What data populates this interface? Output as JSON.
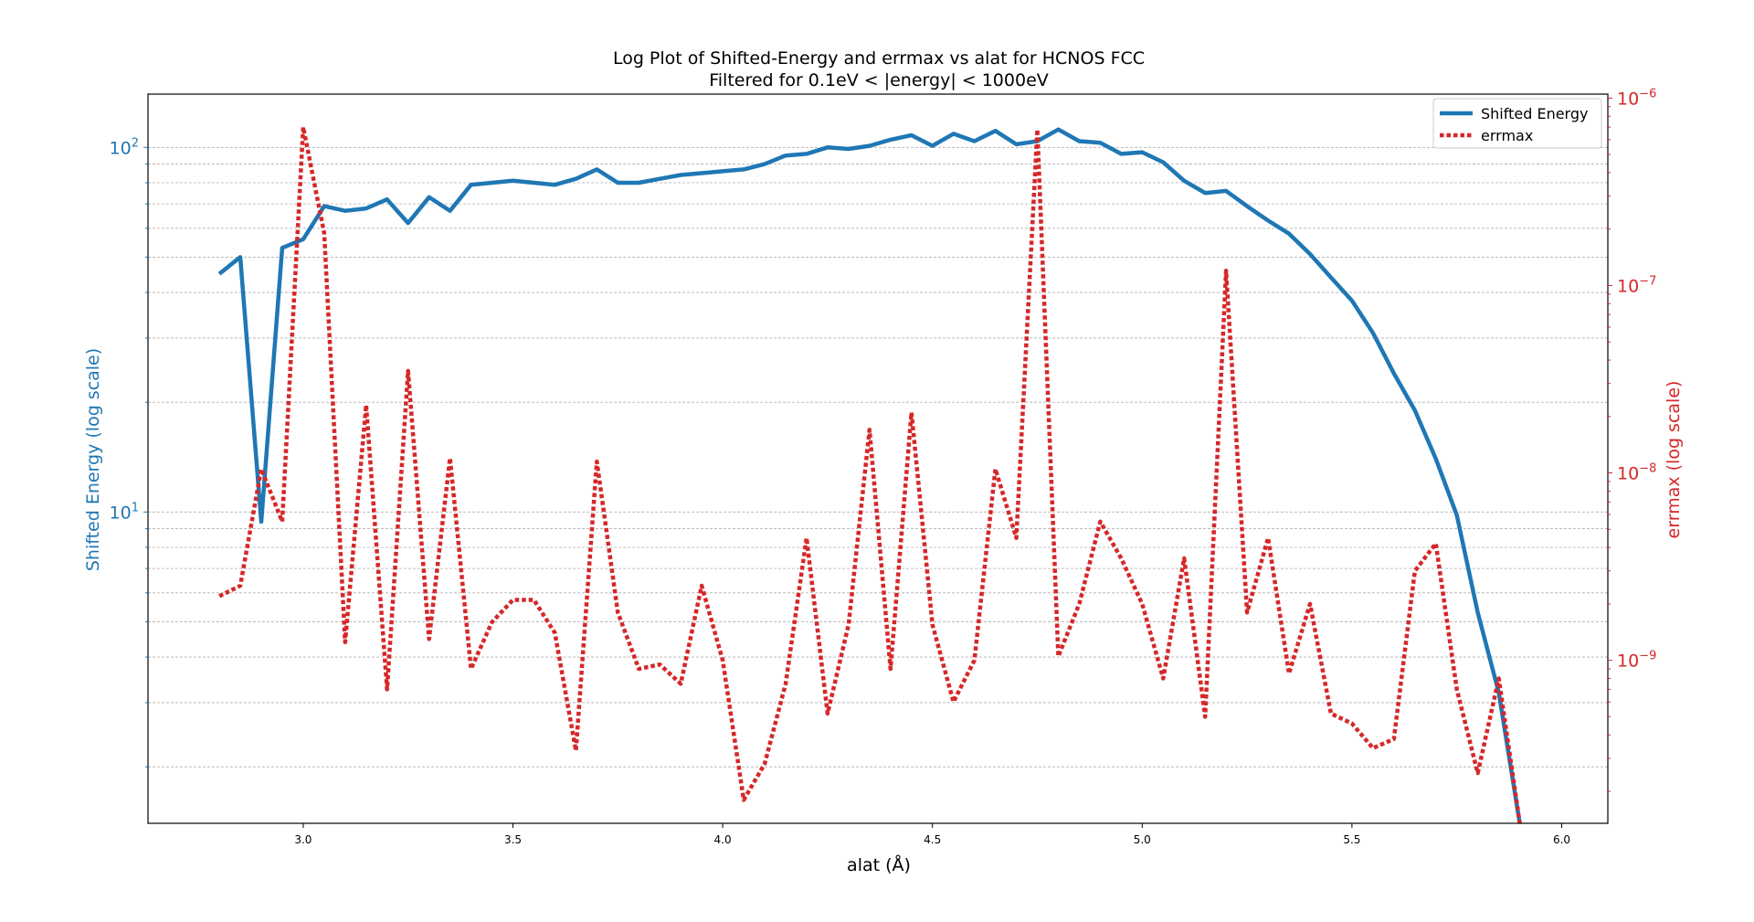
{
  "chart_data": {
    "type": "line",
    "title": "Log Plot of Shifted-Energy and errmax vs alat for HCNOS FCC",
    "subtitle": "Filtered for 0.1eV < |energy| < 1000eV",
    "xlabel": "alat (Å)",
    "ylabel_left": "Shifted Energy (log scale)",
    "ylabel_right": "errmax (log scale)",
    "xlim": [
      2.63,
      6.11
    ],
    "ylim_left": [
      1.4,
      140
    ],
    "ylim_right": [
      1.35e-10,
      1.05e-06
    ],
    "left_yscale": "log",
    "right_yscale": "log",
    "grid": "horizontal minor dashed (left axis)",
    "legend_position": "top-right",
    "x_ticks": [
      "3.0",
      "3.5",
      "4.0",
      "4.5",
      "5.0",
      "5.5",
      "6.0"
    ],
    "x_tick_values": [
      3.0,
      3.5,
      4.0,
      4.5,
      5.0,
      5.5,
      6.0
    ],
    "left_ticks": [
      {
        "value": 10,
        "base": "10",
        "exp": "1"
      },
      {
        "value": 100,
        "base": "10",
        "exp": "2"
      }
    ],
    "right_ticks": [
      {
        "value": 1e-09,
        "base": "10",
        "exp": "−9"
      },
      {
        "value": 1e-08,
        "base": "10",
        "exp": "−8"
      },
      {
        "value": 1e-07,
        "base": "10",
        "exp": "−7"
      },
      {
        "value": 1e-06,
        "base": "10",
        "exp": "−6"
      }
    ],
    "series": [
      {
        "name": "Shifted Energy",
        "axis": "left",
        "color": "#1f77b4",
        "style": "solid",
        "x": [
          2.8,
          2.85,
          2.9,
          2.95,
          3.0,
          3.05,
          3.1,
          3.15,
          3.2,
          3.25,
          3.3,
          3.35,
          3.4,
          3.45,
          3.5,
          3.55,
          3.6,
          3.65,
          3.7,
          3.75,
          3.8,
          3.85,
          3.9,
          3.95,
          4.0,
          4.05,
          4.1,
          4.15,
          4.2,
          4.25,
          4.3,
          4.35,
          4.4,
          4.45,
          4.5,
          4.55,
          4.6,
          4.65,
          4.7,
          4.75,
          4.8,
          4.85,
          4.9,
          4.95,
          5.0,
          5.05,
          5.1,
          5.15,
          5.2,
          5.25,
          5.3,
          5.35,
          5.4,
          5.45,
          5.5,
          5.55,
          5.6,
          5.65,
          5.7,
          5.75,
          5.8,
          5.85,
          5.9
        ],
        "values": [
          45,
          50,
          9.4,
          53,
          56,
          69,
          67,
          68,
          72,
          62,
          73,
          67,
          79,
          80,
          81,
          80,
          79,
          82,
          87,
          80,
          80,
          82,
          84,
          85,
          86,
          87,
          90,
          95,
          96,
          100,
          99,
          101,
          105,
          108,
          101,
          109,
          104,
          111,
          102,
          104,
          112,
          104,
          103,
          96,
          97,
          91,
          81,
          75,
          76,
          69,
          63,
          58,
          51,
          44,
          38,
          31,
          24,
          19,
          14,
          9.8,
          5.3,
          3.2,
          1.4
        ]
      },
      {
        "name": "errmax",
        "axis": "right",
        "color": "#d62728",
        "style": "dotted",
        "x": [
          2.8,
          2.85,
          2.9,
          2.95,
          3.0,
          3.05,
          3.1,
          3.15,
          3.2,
          3.25,
          3.3,
          3.35,
          3.4,
          3.45,
          3.5,
          3.55,
          3.6,
          3.65,
          3.7,
          3.75,
          3.8,
          3.85,
          3.9,
          3.95,
          4.0,
          4.05,
          4.1,
          4.15,
          4.2,
          4.25,
          4.3,
          4.35,
          4.4,
          4.45,
          4.5,
          4.55,
          4.6,
          4.65,
          4.7,
          4.75,
          4.8,
          4.85,
          4.9,
          4.95,
          5.0,
          5.05,
          5.1,
          5.15,
          5.2,
          5.25,
          5.3,
          5.35,
          5.4,
          5.45,
          5.5,
          5.55,
          5.6,
          5.65,
          5.7,
          5.75,
          5.8,
          5.85,
          5.9
        ],
        "values": [
          2.2e-09,
          2.5e-09,
          1.05e-08,
          5.5e-09,
          7e-07,
          1.9e-07,
          1.25e-09,
          2.3e-08,
          7e-10,
          3.5e-08,
          1.3e-09,
          1.2e-08,
          9e-10,
          1.6e-09,
          2.1e-09,
          2.1e-09,
          1.4e-09,
          3.3e-10,
          1.15e-08,
          1.8e-09,
          9e-10,
          9.5e-10,
          7.5e-10,
          2.5e-09,
          1e-09,
          1.8e-10,
          2.8e-10,
          7.5e-10,
          4.5e-09,
          5.2e-10,
          1.55e-09,
          1.7e-08,
          9e-10,
          2.1e-08,
          1.55e-09,
          6e-10,
          1e-09,
          1.05e-08,
          4.5e-09,
          6.8e-07,
          1.05e-09,
          2e-09,
          5.5e-09,
          3.5e-09,
          2e-09,
          8e-10,
          3.5e-09,
          5e-10,
          1.2e-07,
          1.8e-09,
          4.5e-09,
          8.5e-10,
          2e-09,
          5.2e-10,
          4.6e-10,
          3.4e-10,
          3.8e-10,
          3e-09,
          4.2e-09,
          7e-10,
          2.5e-10,
          8e-10,
          1.35e-10
        ]
      }
    ]
  }
}
